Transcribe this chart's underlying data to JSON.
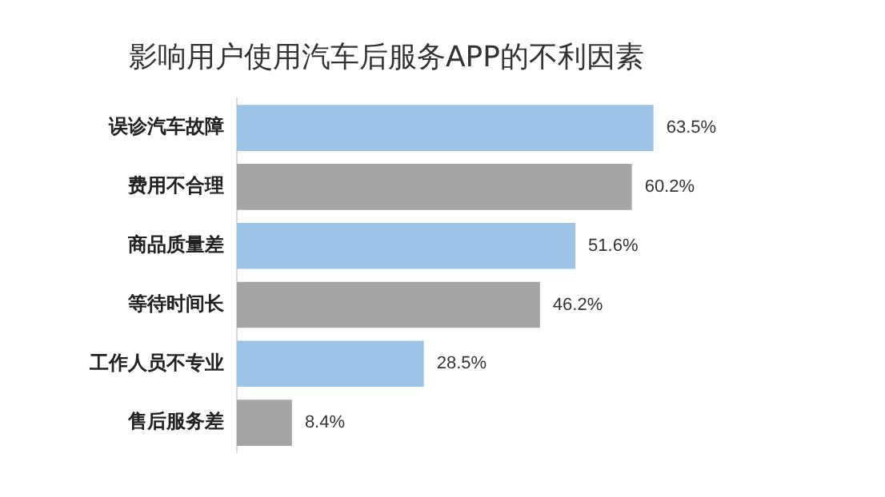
{
  "chart_data": {
    "type": "bar",
    "orientation": "horizontal",
    "title": "影响用户使用汽车后服务APP的不利因素",
    "categories": [
      "误诊汽车故障",
      "费用不合理",
      "商品质量差",
      "等待时间长",
      "工作人员不专业",
      "售后服务差"
    ],
    "values": [
      63.5,
      60.2,
      51.6,
      46.2,
      28.5,
      8.4
    ],
    "value_labels": [
      "63.5%",
      "60.2%",
      "51.6%",
      "46.2%",
      "28.5%",
      "8.4%"
    ],
    "colors": [
      "#9dc3e6",
      "#a5a5a5",
      "#9dc3e6",
      "#a5a5a5",
      "#9dc3e6",
      "#a5a5a5"
    ],
    "legend": false
  }
}
